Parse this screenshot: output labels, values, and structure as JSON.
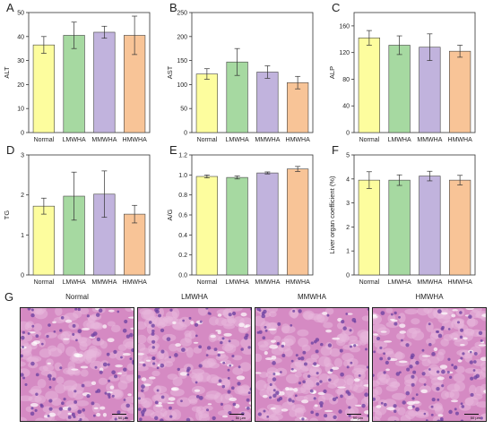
{
  "colors": {
    "Normal": "#fdfd9e",
    "LMWHA": "#a6d9a1",
    "MMWHA": "#c1b3dd",
    "HMWHA": "#f8c497",
    "tissue_base": "#d58ac3",
    "nucleus": "#6a3fa0",
    "cell_light": "#e8b8dd"
  },
  "chart_data": [
    {
      "panel": "A",
      "type": "bar",
      "categories": [
        "Normal",
        "LMWHA",
        "MMWHA",
        "HMWHA"
      ],
      "values": [
        36.5,
        40.5,
        41.8,
        40.5
      ],
      "errors": [
        3.5,
        5.5,
        2.5,
        8
      ],
      "ylabel": "ALT",
      "ylim": [
        0,
        50
      ],
      "yticks": [
        0,
        10,
        20,
        30,
        40,
        50
      ]
    },
    {
      "panel": "B",
      "type": "bar",
      "categories": [
        "Normal",
        "LMWHA",
        "MMWHA",
        "HMWHA"
      ],
      "values": [
        122,
        147,
        126,
        104
      ],
      "errors": [
        11,
        28,
        13,
        13
      ],
      "ylabel": "AST",
      "ylim": [
        0,
        250
      ],
      "yticks": [
        0,
        50,
        100,
        150,
        200,
        250
      ]
    },
    {
      "panel": "C",
      "type": "bar",
      "categories": [
        "Normal",
        "LMWHA",
        "MMWHA",
        "HMWHA"
      ],
      "values": [
        142,
        131,
        128,
        122
      ],
      "errors": [
        11,
        14,
        20,
        9
      ],
      "ylabel": "ALP",
      "ylim": [
        0,
        180
      ],
      "yticks": [
        0,
        40,
        80,
        120,
        160
      ]
    },
    {
      "panel": "D",
      "type": "bar",
      "categories": [
        "Normal",
        "LMWHA",
        "MMWHA",
        "HMWHA"
      ],
      "values": [
        1.72,
        1.97,
        2.02,
        1.52
      ],
      "errors": [
        0.2,
        0.6,
        0.58,
        0.22
      ],
      "ylabel": "TG",
      "ylim": [
        0,
        3
      ],
      "yticks": [
        0,
        1,
        2,
        3
      ]
    },
    {
      "panel": "E",
      "type": "bar",
      "categories": [
        "Normal",
        "LMWHA",
        "MMWHA",
        "HMWHA"
      ],
      "values": [
        0.985,
        0.975,
        1.02,
        1.06
      ],
      "errors": [
        0.015,
        0.015,
        0.01,
        0.025
      ],
      "ylabel": "A/G",
      "ylim": [
        0,
        1.2
      ],
      "yticks": [
        "0.0",
        "0.2",
        "0.4",
        "0.6",
        "0.8",
        "1.0",
        "1.2"
      ]
    },
    {
      "panel": "F",
      "type": "bar",
      "categories": [
        "Normal",
        "LMWHA",
        "MMWHA",
        "HMWHA"
      ],
      "values": [
        3.95,
        3.95,
        4.12,
        3.95
      ],
      "errors": [
        0.35,
        0.22,
        0.2,
        0.2
      ],
      "ylabel": "Liver organ coefficient (%)",
      "ylim": [
        0,
        5
      ],
      "yticks": [
        0,
        1,
        2,
        3,
        4,
        5
      ]
    }
  ],
  "histology": {
    "panel_label": "G",
    "groups": [
      "Normal",
      "LMWHA",
      "MMWHA",
      "HMWHA"
    ],
    "scale_text": "50 μm"
  }
}
